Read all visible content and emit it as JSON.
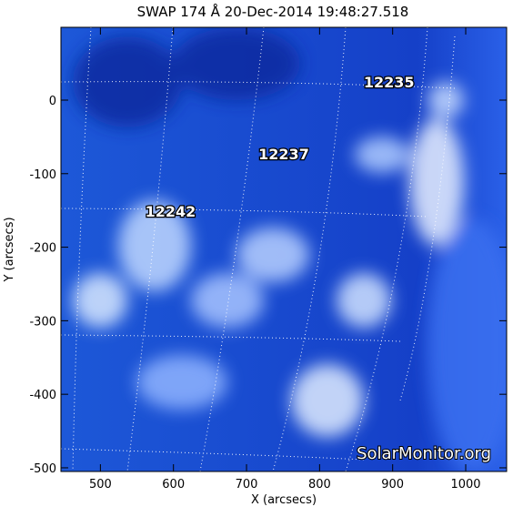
{
  "chart_data": {
    "type": "image",
    "title": "SWAP 174 Å 20-Dec-2014 19:48:27.518",
    "xlabel": "X (arcsecs)",
    "ylabel": "Y (arcsecs)",
    "xlim": [
      446,
      1056
    ],
    "ylim": [
      -505,
      99
    ],
    "xticks": [
      500,
      600,
      700,
      800,
      900,
      1000
    ],
    "yticks": [
      0,
      -100,
      -200,
      -300,
      -400,
      -500
    ],
    "annotations": [
      {
        "text": "12235",
        "x": 895,
        "y": 25
      },
      {
        "text": "12237",
        "x": 751,
        "y": -73
      },
      {
        "text": "12242",
        "x": 596,
        "y": -151
      }
    ],
    "watermark": "SolarMonitor.org"
  }
}
